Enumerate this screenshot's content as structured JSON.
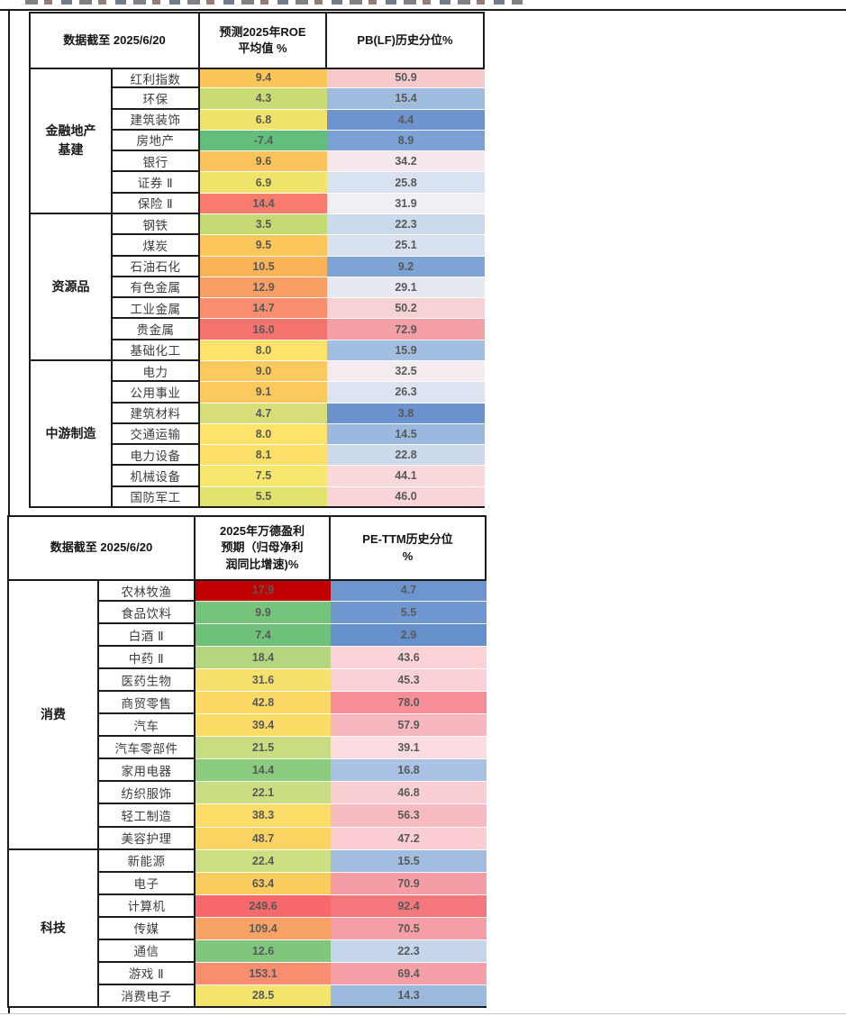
{
  "palette": {
    "table_border": "#1c1c1c",
    "value_text": "#595959",
    "scale_v1_low": "#63BE7B",
    "scale_v1_mid": "#FFEB84",
    "scale_v1_high": "#F8696B",
    "scale_v2_low": "#5A8AC6",
    "scale_v2_mid": "#FCFCFF",
    "scale_v2_high": "#F8696B",
    "outlier_dark_red": "#C00000"
  },
  "chart_data": [
    {
      "type": "heatmap-table",
      "legend_note": "col1: green(low)->yellow->red(high); col2: blue(low)->white->pink/red(high)",
      "header": [
        "数据截至 2025/6/20",
        "预测2025年ROE\n平均值 %",
        "PB(LF)历史分位%"
      ],
      "groups": [
        {
          "name": "金融地产\n基建",
          "rows": [
            {
              "label": "红利指数",
              "v1": "9.4",
              "c1": "#FBC659",
              "v2": "50.9",
              "c2": "#F7C9CD"
            },
            {
              "label": "环保",
              "v1": "4.3",
              "c1": "#CBDB74",
              "v2": "15.4",
              "c2": "#9FBCDF"
            },
            {
              "label": "建筑装饰",
              "v1": "6.8",
              "c1": "#EFE36C",
              "v2": "4.4",
              "c2": "#6D94CE"
            },
            {
              "label": "房地产",
              "v1": "-7.4",
              "c1": "#63BE7B",
              "v2": "8.9",
              "c2": "#7CA1D4"
            },
            {
              "label": "银行",
              "v1": "9.6",
              "c1": "#FBC35B",
              "v2": "34.2",
              "c2": "#F5E8EC"
            },
            {
              "label": "证券 Ⅱ",
              "v1": "6.9",
              "c1": "#F0E46D",
              "v2": "25.8",
              "c2": "#D9E2F0"
            },
            {
              "label": "保险 Ⅱ",
              "v1": "14.4",
              "c1": "#F87B6D",
              "v2": "31.9",
              "c2": "#F1EEF4"
            }
          ]
        },
        {
          "name": "资源品",
          "rows": [
            {
              "label": "钢铁",
              "v1": "3.5",
              "c1": "#C6DA73",
              "v2": "22.3",
              "c2": "#CBD9EC"
            },
            {
              "label": "煤炭",
              "v1": "9.5",
              "c1": "#FBC65C",
              "v2": "25.1",
              "c2": "#D7E1EF"
            },
            {
              "label": "石油石化",
              "v1": "10.5",
              "c1": "#FBB357",
              "v2": "9.2",
              "c2": "#7EA3D5"
            },
            {
              "label": "有色金属",
              "v1": "12.9",
              "c1": "#F99E64",
              "v2": "29.1",
              "c2": "#E6E9F2"
            },
            {
              "label": "工业金属",
              "v1": "14.7",
              "c1": "#F88D70",
              "v2": "50.2",
              "c2": "#F7D2D5"
            },
            {
              "label": "贵金属",
              "v1": "16.0",
              "c1": "#F5726F",
              "v2": "72.9",
              "c2": "#F49FA5"
            },
            {
              "label": "基础化工",
              "v1": "8.0",
              "c1": "#FDE26B",
              "v2": "15.9",
              "c2": "#A2BEE0"
            }
          ]
        },
        {
          "name": "中游制造",
          "rows": [
            {
              "label": "电力",
              "v1": "9.0",
              "c1": "#FBCA5E",
              "v2": "32.5",
              "c2": "#F4EBF0"
            },
            {
              "label": "公用事业",
              "v1": "9.1",
              "c1": "#FBC95D",
              "v2": "26.3",
              "c2": "#DCE4F1"
            },
            {
              "label": "建筑材料",
              "v1": "4.7",
              "c1": "#D5DE77",
              "v2": "3.8",
              "c2": "#6B92CD"
            },
            {
              "label": "交通运输",
              "v1": "8.0",
              "c1": "#FDE36B",
              "v2": "14.5",
              "c2": "#9BB9DE"
            },
            {
              "label": "电力设备",
              "v1": "8.1",
              "c1": "#FCE069",
              "v2": "22.8",
              "c2": "#CDDAEC"
            },
            {
              "label": "机械设备",
              "v1": "7.5",
              "c1": "#F7E76E",
              "v2": "44.1",
              "c2": "#F9D8DB"
            },
            {
              "label": "国防军工",
              "v1": "5.5",
              "c1": "#E2E26F",
              "v2": "46.0",
              "c2": "#F9D5D9"
            }
          ]
        }
      ]
    },
    {
      "type": "heatmap-table",
      "legend_note": "col1: green(low)->yellow->red(high), dark-red outlier; col2: blue(low)->white->pink/red(high)",
      "header": [
        "数据截至 2025/6/20",
        "2025年万德盈利\n预期（归母净利\n润同比增速)%",
        "PE-TTM历史分位\n%"
      ],
      "groups": [
        {
          "name": "消费",
          "rows": [
            {
              "label": "农林牧渔",
              "v1": "17.9",
              "c1": "#C00000",
              "v2": "4.7",
              "c2": "#6D95CE"
            },
            {
              "label": "食品饮料",
              "v1": "9.9",
              "c1": "#76C47C",
              "v2": "5.5",
              "c2": "#7097CF"
            },
            {
              "label": "白酒 Ⅱ",
              "v1": "7.4",
              "c1": "#6FC17A",
              "v2": "2.9",
              "c2": "#6690CC"
            },
            {
              "label": "中药 Ⅱ",
              "v1": "18.4",
              "c1": "#B3D67F",
              "v2": "43.6",
              "c2": "#FBD3D7"
            },
            {
              "label": "医药生物",
              "v1": "31.6",
              "c1": "#F7E16C",
              "v2": "45.3",
              "c2": "#FAD1D6"
            },
            {
              "label": "商贸零售",
              "v1": "42.8",
              "c1": "#FBD964",
              "v2": "78.0",
              "c2": "#F58E97"
            },
            {
              "label": "汽车",
              "v1": "39.4",
              "c1": "#FBDC66",
              "v2": "57.9",
              "c2": "#F8B7BE"
            },
            {
              "label": "汽车零部件",
              "v1": "21.5",
              "c1": "#C8DC81",
              "v2": "39.1",
              "c2": "#FBDDE1"
            },
            {
              "label": "家用电器",
              "v1": "14.4",
              "c1": "#8BCB7D",
              "v2": "16.8",
              "c2": "#A9C1E2"
            },
            {
              "label": "纺织服饰",
              "v1": "22.1",
              "c1": "#CBDD82",
              "v2": "46.8",
              "c2": "#FACFD4"
            },
            {
              "label": "轻工制造",
              "v1": "38.3",
              "c1": "#FCDD67",
              "v2": "56.3",
              "c2": "#F8BAC1"
            },
            {
              "label": "美容护理",
              "v1": "48.7",
              "c1": "#FAD360",
              "v2": "47.2",
              "c2": "#FACED3"
            }
          ]
        },
        {
          "name": "科技",
          "rows": [
            {
              "label": "新能源",
              "v1": "22.4",
              "c1": "#CCDE82",
              "v2": "15.5",
              "c2": "#A3BDE0"
            },
            {
              "label": "电子",
              "v1": "63.4",
              "c1": "#FACC5E",
              "v2": "70.9",
              "c2": "#F59DA5"
            },
            {
              "label": "计算机",
              "v1": "249.6",
              "c1": "#F7696B",
              "v2": "92.4",
              "c2": "#F4777D"
            },
            {
              "label": "传媒",
              "v1": "109.4",
              "c1": "#F9A265",
              "v2": "70.5",
              "c2": "#F59EA6"
            },
            {
              "label": "通信",
              "v1": "12.6",
              "c1": "#7FC77C",
              "v2": "22.3",
              "c2": "#C5D5EA"
            },
            {
              "label": "游戏 Ⅱ",
              "v1": "153.1",
              "c1": "#F98D70",
              "v2": "69.4",
              "c2": "#F5A0A8"
            },
            {
              "label": "消费电子",
              "v1": "28.5",
              "c1": "#F3E56C",
              "v2": "14.3",
              "c2": "#9DB9DE"
            }
          ]
        }
      ]
    }
  ]
}
